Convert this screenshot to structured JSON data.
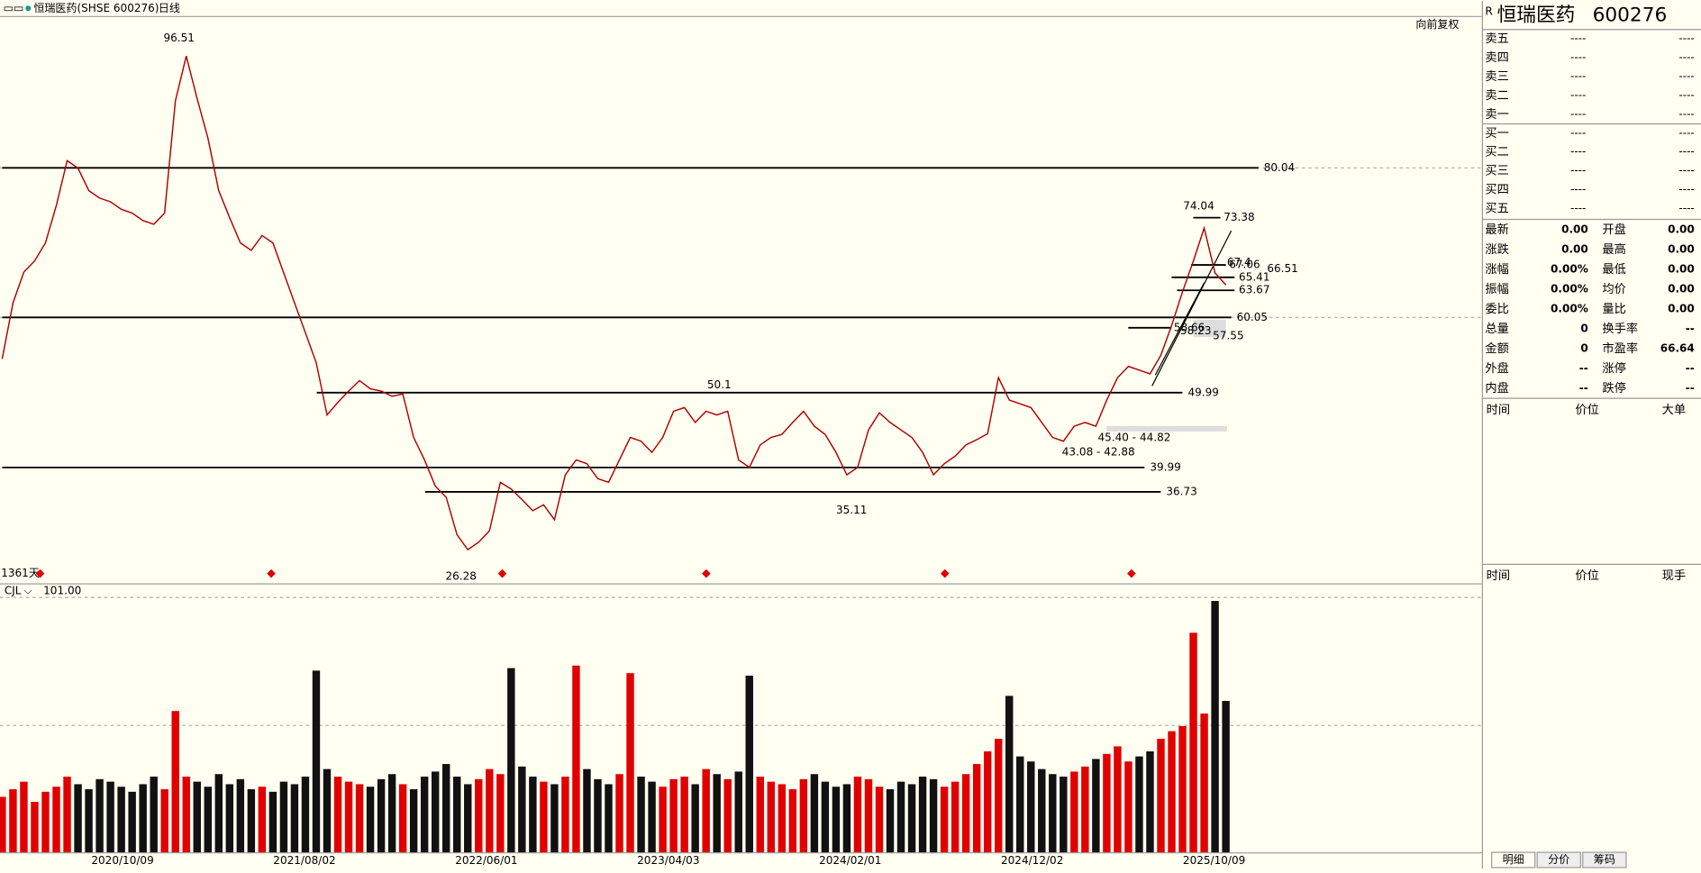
{
  "header": {
    "title": "恒瑞医药(SHSE 600276)",
    "period": "日线",
    "adjust": "向前复权"
  },
  "price_panel": {
    "ylim": [
      24.5,
      100.2
    ],
    "values": [
      54.5,
      62,
      66.1,
      67.6,
      70,
      75,
      81,
      80,
      77,
      76,
      75.5,
      74.5,
      74,
      73,
      72.5,
      74,
      89,
      95,
      89.3,
      84,
      77,
      73.4,
      70,
      69,
      71,
      70,
      66,
      62,
      58,
      54,
      47,
      48.7,
      50.2,
      51.6,
      50.5,
      50.2,
      49.5,
      49.8,
      44,
      41,
      37.5,
      36,
      31,
      29,
      30,
      31.5,
      38,
      37.1,
      35.7,
      34.2,
      35,
      33,
      39,
      41,
      40.5,
      38.5,
      38,
      41,
      44,
      43.5,
      42,
      44,
      47.5,
      48,
      46,
      47.5,
      47,
      47.5,
      41,
      40,
      43,
      44,
      44.4,
      46,
      47.5,
      45.5,
      44.4,
      42,
      39,
      40,
      45,
      47.3,
      46,
      45,
      44,
      42,
      39,
      40.5,
      41.5,
      43,
      43.7,
      44.5,
      52,
      49,
      48.5,
      48,
      46,
      44,
      43.5,
      45.5,
      46,
      45.5,
      49,
      52,
      53.5,
      53,
      52.5,
      55,
      59,
      63.5,
      67.6,
      72,
      66,
      64.4
    ],
    "levels": [
      80.04,
      60.05,
      49.99,
      39.99,
      36.73,
      73.38,
      67.06,
      65.41,
      63.67,
      58.66
    ],
    "level_notes": [
      67.4,
      66.51,
      58.23,
      57.55
    ],
    "highs": [
      96.51,
      50.1,
      74.04
    ],
    "lows": [
      26.28,
      35.11
    ],
    "ranges": [
      "45.40 - 44.82",
      "43.08 - 42.88"
    ],
    "day_count": "1361天"
  },
  "volume_panel": {
    "label": "CJL",
    "ylim": [
      0,
      101
    ],
    "top_tick": {
      "value": 101,
      "label": "101.00"
    },
    "values": [
      22,
      25,
      28,
      20,
      24,
      26,
      30,
      27,
      25,
      29,
      28,
      26,
      24,
      27,
      30,
      25,
      56,
      30,
      28,
      26,
      31,
      27,
      29,
      25,
      26,
      24,
      28,
      27,
      30,
      72,
      33,
      30,
      28,
      27,
      26,
      29,
      31,
      27,
      25,
      30,
      32,
      35,
      30,
      27,
      29,
      33,
      31,
      73,
      34,
      30,
      28,
      27,
      30,
      74,
      33,
      29,
      27,
      31,
      71,
      30,
      28,
      26,
      29,
      30,
      27,
      33,
      31,
      29,
      32,
      70,
      30,
      28,
      27,
      25,
      29,
      31,
      28,
      26,
      27,
      30,
      29,
      26,
      25,
      28,
      27,
      30,
      29,
      26,
      28,
      31,
      35,
      40,
      45,
      62,
      38,
      36,
      33,
      31,
      30,
      32,
      34,
      37,
      39,
      42,
      36,
      38,
      40,
      45,
      48,
      50,
      87,
      55,
      99.6,
      60
    ]
  },
  "x_axis": [
    "2020/10/09",
    "2021/08/02",
    "2022/06/01",
    "2023/04/03",
    "2024/02/01",
    "2024/12/02",
    "2025/10/09"
  ],
  "quote": {
    "flag": "R",
    "name": "恒瑞医药",
    "code": "600276",
    "book": [
      {
        "label": "卖五",
        "price": "----",
        "volume": "----"
      },
      {
        "label": "卖四",
        "price": "----",
        "volume": "----"
      },
      {
        "label": "卖三",
        "price": "----",
        "volume": "----"
      },
      {
        "label": "卖二",
        "price": "----",
        "volume": "----"
      },
      {
        "label": "卖一",
        "price": "----",
        "volume": "----"
      },
      {
        "label": "买一",
        "price": "----",
        "volume": "----"
      },
      {
        "label": "买二",
        "price": "----",
        "volume": "----"
      },
      {
        "label": "买三",
        "price": "----",
        "volume": "----"
      },
      {
        "label": "买四",
        "price": "----",
        "volume": "----"
      },
      {
        "label": "买五",
        "price": "----",
        "volume": "----"
      }
    ],
    "stats": [
      [
        {
          "label": "最新",
          "value": "0.00",
          "color": "#000"
        },
        {
          "label": "开盘",
          "value": "0.00",
          "color": "#000"
        }
      ],
      [
        {
          "label": "涨跌",
          "value": "0.00",
          "color": "#000"
        },
        {
          "label": "最高",
          "value": "0.00",
          "color": "#000"
        }
      ],
      [
        {
          "label": "涨幅",
          "value": "0.00%",
          "color": "#000"
        },
        {
          "label": "最低",
          "value": "0.00",
          "color": "#000"
        }
      ],
      [
        {
          "label": "振幅",
          "value": "0.00%",
          "color": "#0a8a9a"
        },
        {
          "label": "均价",
          "value": "0.00",
          "color": "#000"
        }
      ],
      [
        {
          "label": "委比",
          "value": "0.00%",
          "color": "#0a8a9a"
        },
        {
          "label": "量比",
          "value": "0.00",
          "color": "#0a8a9a"
        }
      ],
      [
        {
          "label": "总量",
          "value": "0",
          "color": "#0a8a9a"
        },
        {
          "label": "换手率",
          "value": "--",
          "color": "#0a8a9a"
        }
      ],
      [
        {
          "label": "金额",
          "value": "0",
          "color": "#0a8a9a"
        },
        {
          "label": "市盈率",
          "value": "66.64",
          "color": "#0a8a9a"
        }
      ],
      [
        {
          "label": "外盘",
          "value": "--",
          "color": "#0a8a9a"
        },
        {
          "label": "涨停",
          "value": "--",
          "color": "#d00"
        }
      ],
      [
        {
          "label": "内盘",
          "value": "--",
          "color": "#0a8a9a"
        },
        {
          "label": "跌停",
          "value": "--",
          "color": "#0a8a9a"
        }
      ]
    ],
    "big_header": [
      "时间",
      "价位",
      "大单"
    ],
    "trade_header": [
      "时间",
      "价位",
      "现手"
    ],
    "tabs": [
      "明细",
      "分价",
      "筹码"
    ]
  }
}
